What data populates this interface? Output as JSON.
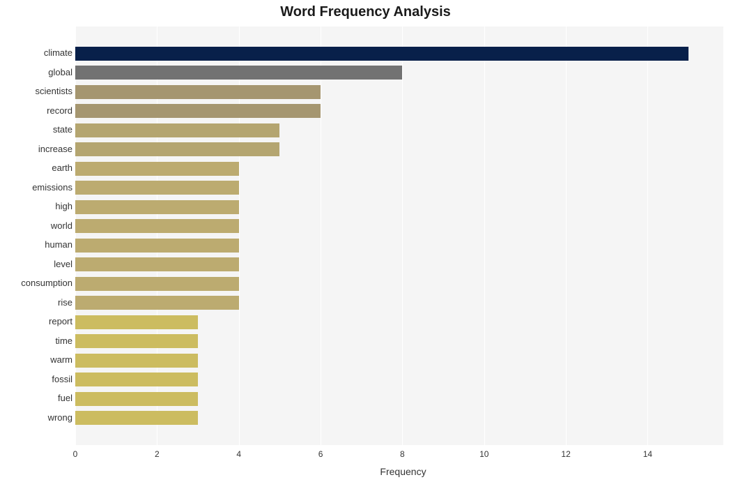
{
  "chart": {
    "type": "bar-horizontal",
    "title": "Word Frequency Analysis",
    "title_fontsize": 20,
    "title_fontweight": "bold",
    "title_color": "#1a1a1a",
    "xlabel": "Frequency",
    "xlabel_fontsize": 14,
    "xlabel_color": "#333333",
    "background_color": "#ffffff",
    "plot_background": "#f5f5f5",
    "grid_color": "#ffffff",
    "xlim": [
      0,
      15.85
    ],
    "xticks": [
      0,
      2,
      4,
      6,
      8,
      10,
      12,
      14
    ],
    "xtick_fontsize": 12,
    "ytick_fontsize": 13,
    "tick_color": "#333333",
    "bar_height_ratio": 0.71,
    "categories": [
      "climate",
      "global",
      "scientists",
      "record",
      "state",
      "increase",
      "earth",
      "emissions",
      "high",
      "world",
      "human",
      "level",
      "consumption",
      "rise",
      "report",
      "time",
      "warm",
      "fossil",
      "fuel",
      "wrong"
    ],
    "values": [
      15,
      8,
      6,
      6,
      5,
      5,
      4,
      4,
      4,
      4,
      4,
      4,
      4,
      4,
      3,
      3,
      3,
      3,
      3,
      3
    ],
    "bar_colors": [
      "#08204a",
      "#727272",
      "#a59670",
      "#a59670",
      "#b4a570",
      "#b4a570",
      "#bcab70",
      "#bcab70",
      "#bcab70",
      "#bcab70",
      "#bcab70",
      "#bcab70",
      "#bcab70",
      "#bcab70",
      "#ccbc60",
      "#ccbc60",
      "#ccbc60",
      "#ccbc60",
      "#ccbc60",
      "#ccbc60"
    ]
  }
}
